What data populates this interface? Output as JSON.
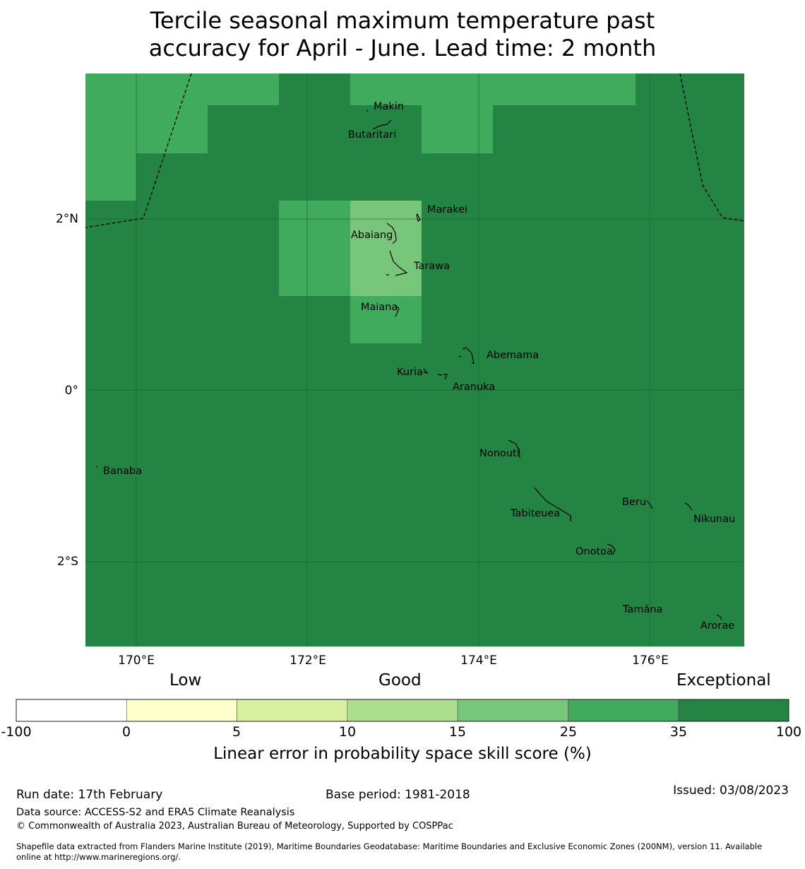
{
  "title": {
    "line1": "Tercile seasonal maximum temperature past",
    "line2": "accuracy for April - June. Lead time: 2 month"
  },
  "map": {
    "lon_ticks": [
      "170°E",
      "172°E",
      "174°E",
      "176°E"
    ],
    "lat_ticks": [
      "2°N",
      "0°",
      "2°S"
    ],
    "places": [
      {
        "name": "Makin"
      },
      {
        "name": "Butaritari"
      },
      {
        "name": "Marakei"
      },
      {
        "name": "Abaiang"
      },
      {
        "name": "Tarawa"
      },
      {
        "name": "Maiana"
      },
      {
        "name": "Abemama"
      },
      {
        "name": "Kuria"
      },
      {
        "name": "Aranuka"
      },
      {
        "name": "Nonouti"
      },
      {
        "name": "Banaba"
      },
      {
        "name": "Beru"
      },
      {
        "name": "Tabiteuea"
      },
      {
        "name": "Nikunau"
      },
      {
        "name": "Onotoa"
      },
      {
        "name": "Tamana"
      },
      {
        "name": "Arorae"
      }
    ]
  },
  "colorbar": {
    "categories": [
      "Low",
      "Good",
      "Exceptional"
    ],
    "ticks": [
      "-100",
      "0",
      "5",
      "10",
      "15",
      "25",
      "35",
      "100"
    ],
    "colors": [
      "#ffffff",
      "#ffffcc",
      "#d9f0a3",
      "#addd8e",
      "#78c679",
      "#41ab5d",
      "#238443"
    ],
    "label": "Linear error in probability space skill score (%)"
  },
  "footer": {
    "run_date": "Run date: 17th February",
    "base_period": "Base period: 1981-2018",
    "issued": "Issued: 03/08/2023",
    "data_source": "Data source: ACCESS-S2 and ERA5 Climate Reanalysis",
    "copyright": "© Commonwealth of Australia 2023, Australian Bureau of Meteorology, Supported by COSPPac",
    "shapefile_line1": "Shapefile data extracted from Flanders Marine Institute (2019), Maritime Boundaries Geodatabase: Maritime Boundaries and Exclusive Economic Zones (200NM), version 11. Available",
    "shapefile_line2": "online at http://www.marineregions.org/."
  }
}
